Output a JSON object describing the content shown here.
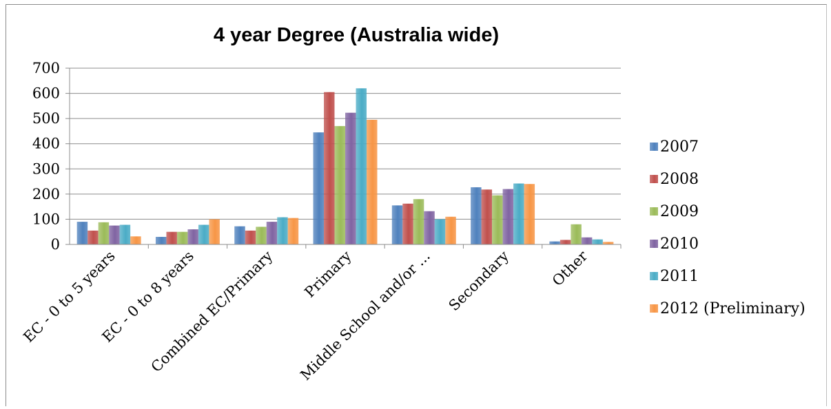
{
  "chart_data": {
    "type": "bar",
    "title": "4 year Degree (Australia wide)",
    "categories": [
      "EC - 0 to 5 years",
      "EC - 0 to 8 years",
      "Combined EC/Primary",
      "Primary",
      "Middle School and/or ...",
      "Secondary",
      "Other"
    ],
    "series": [
      {
        "name": "2007",
        "color": "#4f81bd",
        "values": [
          90,
          30,
          72,
          445,
          155,
          227,
          12
        ]
      },
      {
        "name": "2008",
        "color": "#c0504d",
        "values": [
          55,
          50,
          55,
          605,
          162,
          218,
          18
        ]
      },
      {
        "name": "2009",
        "color": "#9bbb59",
        "values": [
          88,
          50,
          70,
          470,
          180,
          195,
          80
        ]
      },
      {
        "name": "2010",
        "color": "#8064a2",
        "values": [
          75,
          60,
          90,
          523,
          132,
          220,
          28
        ]
      },
      {
        "name": "2011",
        "color": "#4bacc6",
        "values": [
          78,
          78,
          108,
          620,
          100,
          242,
          20
        ]
      },
      {
        "name": "2012 (Preliminary)",
        "color": "#f79646",
        "values": [
          32,
          100,
          105,
          495,
          110,
          240,
          10
        ]
      }
    ],
    "ylim": [
      0,
      700
    ],
    "yticks": [
      "0",
      "100",
      "200",
      "300",
      "400",
      "500",
      "600",
      "700"
    ],
    "grid": true,
    "legend_position": "right"
  }
}
